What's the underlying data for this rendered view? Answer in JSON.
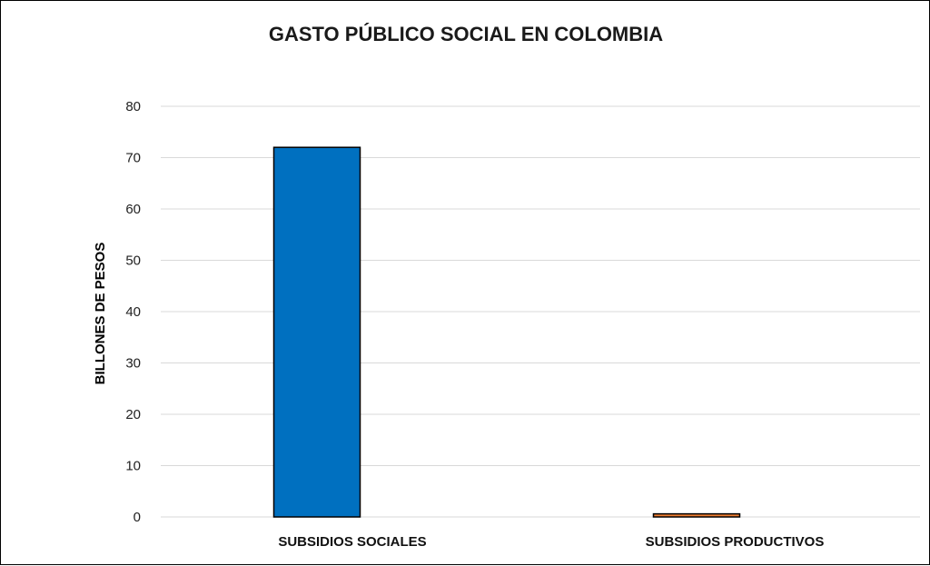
{
  "chart_data": {
    "type": "bar",
    "title": "GASTO PÚBLICO SOCIAL EN COLOMBIA",
    "xlabel": "",
    "ylabel": "BILLONES  DE PESOS",
    "categories": [
      "SUBSIDIOS SOCIALES",
      "SUBSIDIOS PRODUCTIVOS"
    ],
    "values": [
      72,
      0.6
    ],
    "colors": [
      "#0070C0",
      "#ED7D31"
    ],
    "ylim": [
      0,
      80
    ],
    "yticks": [
      0,
      10,
      20,
      30,
      40,
      50,
      60,
      70,
      80
    ],
    "grid": true,
    "legend": "none"
  }
}
